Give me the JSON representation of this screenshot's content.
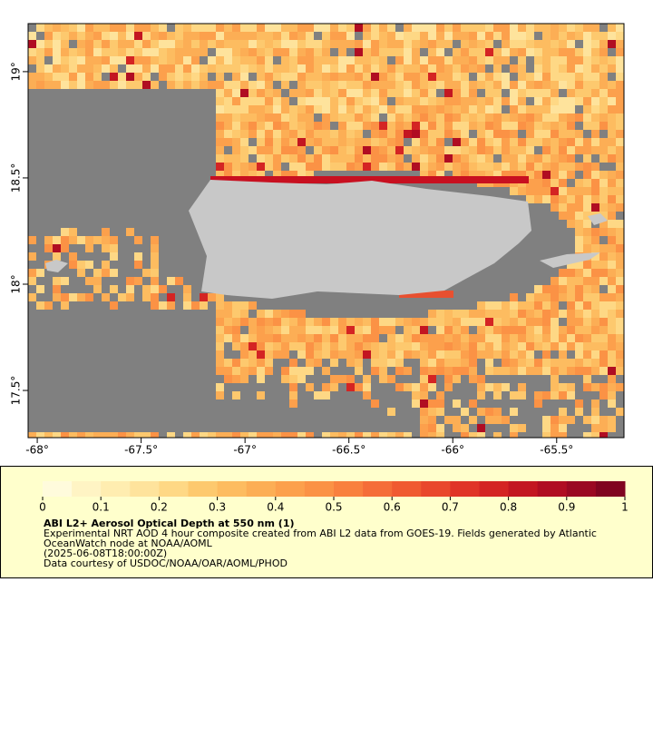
{
  "map": {
    "xlim": [
      -68.044,
      -65.176
    ],
    "ylim": [
      17.278,
      19.226
    ],
    "xticks": [
      {
        "value": -68,
        "label": "-68°"
      },
      {
        "value": -67.5,
        "label": "-67.5°"
      },
      {
        "value": -67,
        "label": "-67°"
      },
      {
        "value": -66.5,
        "label": "-66.5°"
      },
      {
        "value": -66,
        "label": "-66°"
      },
      {
        "value": -65.5,
        "label": "-65.5°"
      }
    ],
    "yticks": [
      {
        "value": 17.5,
        "label": "17.5°"
      },
      {
        "value": 18,
        "label": "18°"
      },
      {
        "value": 18.5,
        "label": "18.5°"
      },
      {
        "value": 19,
        "label": "19°"
      }
    ],
    "land_color": "#c8c8c8",
    "nodata_color": "#808080"
  },
  "colorbar": {
    "lim": [
      0,
      1
    ],
    "ticks": [
      0,
      0.1,
      0.2,
      0.3,
      0.4,
      0.5,
      0.6,
      0.7,
      0.8,
      0.9,
      1
    ],
    "colors": [
      "#fffbdc",
      "#fff4c4",
      "#ffedb0",
      "#fee39c",
      "#fed885",
      "#fdc96e",
      "#fdbc60",
      "#fcae55",
      "#fca04c",
      "#fb9245",
      "#f9803e",
      "#f56d38",
      "#f05a31",
      "#e9472c",
      "#e03427",
      "#d42423",
      "#c31621",
      "#b00d22",
      "#9a0822",
      "#800420"
    ]
  },
  "caption": {
    "title": "ABI L2+ Aerosol Optical Depth at 550 nm (1)",
    "lines": [
      "Experimental NRT AOD 4 hour composite created from ABI L2 data from GOES-19. Fields generated by Atlantic",
      "OceanWatch node at NOAA/AOML",
      "(2025-06-08T18:00:00Z)",
      "Data courtesy of USDOC/NOAA/OAR/AOML/PHOD"
    ]
  }
}
